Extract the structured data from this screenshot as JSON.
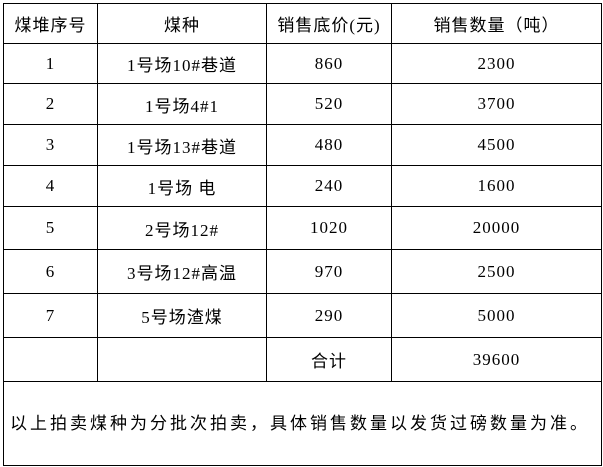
{
  "table": {
    "headers": [
      "煤堆序号",
      "煤种",
      "销售底价(元)",
      "销售数量（吨）"
    ],
    "rows": [
      [
        "1",
        "1号场10#巷道",
        "860",
        "2300"
      ],
      [
        "2",
        "1号场4#1",
        "520",
        "3700"
      ],
      [
        "3",
        "1号场13#巷道",
        "480",
        "4500"
      ],
      [
        "4",
        "1号场 电",
        "240",
        "1600"
      ],
      [
        "5",
        "2号场12#",
        "1020",
        "20000"
      ],
      [
        "6",
        "3号场12#高温",
        "970",
        "2500"
      ],
      [
        "7",
        "5号场渣煤",
        "290",
        "5000"
      ]
    ],
    "total_label": "合计",
    "total_value": "39600",
    "note": "以上拍卖煤种为分批次拍卖，具体销售数量以发货过磅数量为准。"
  }
}
